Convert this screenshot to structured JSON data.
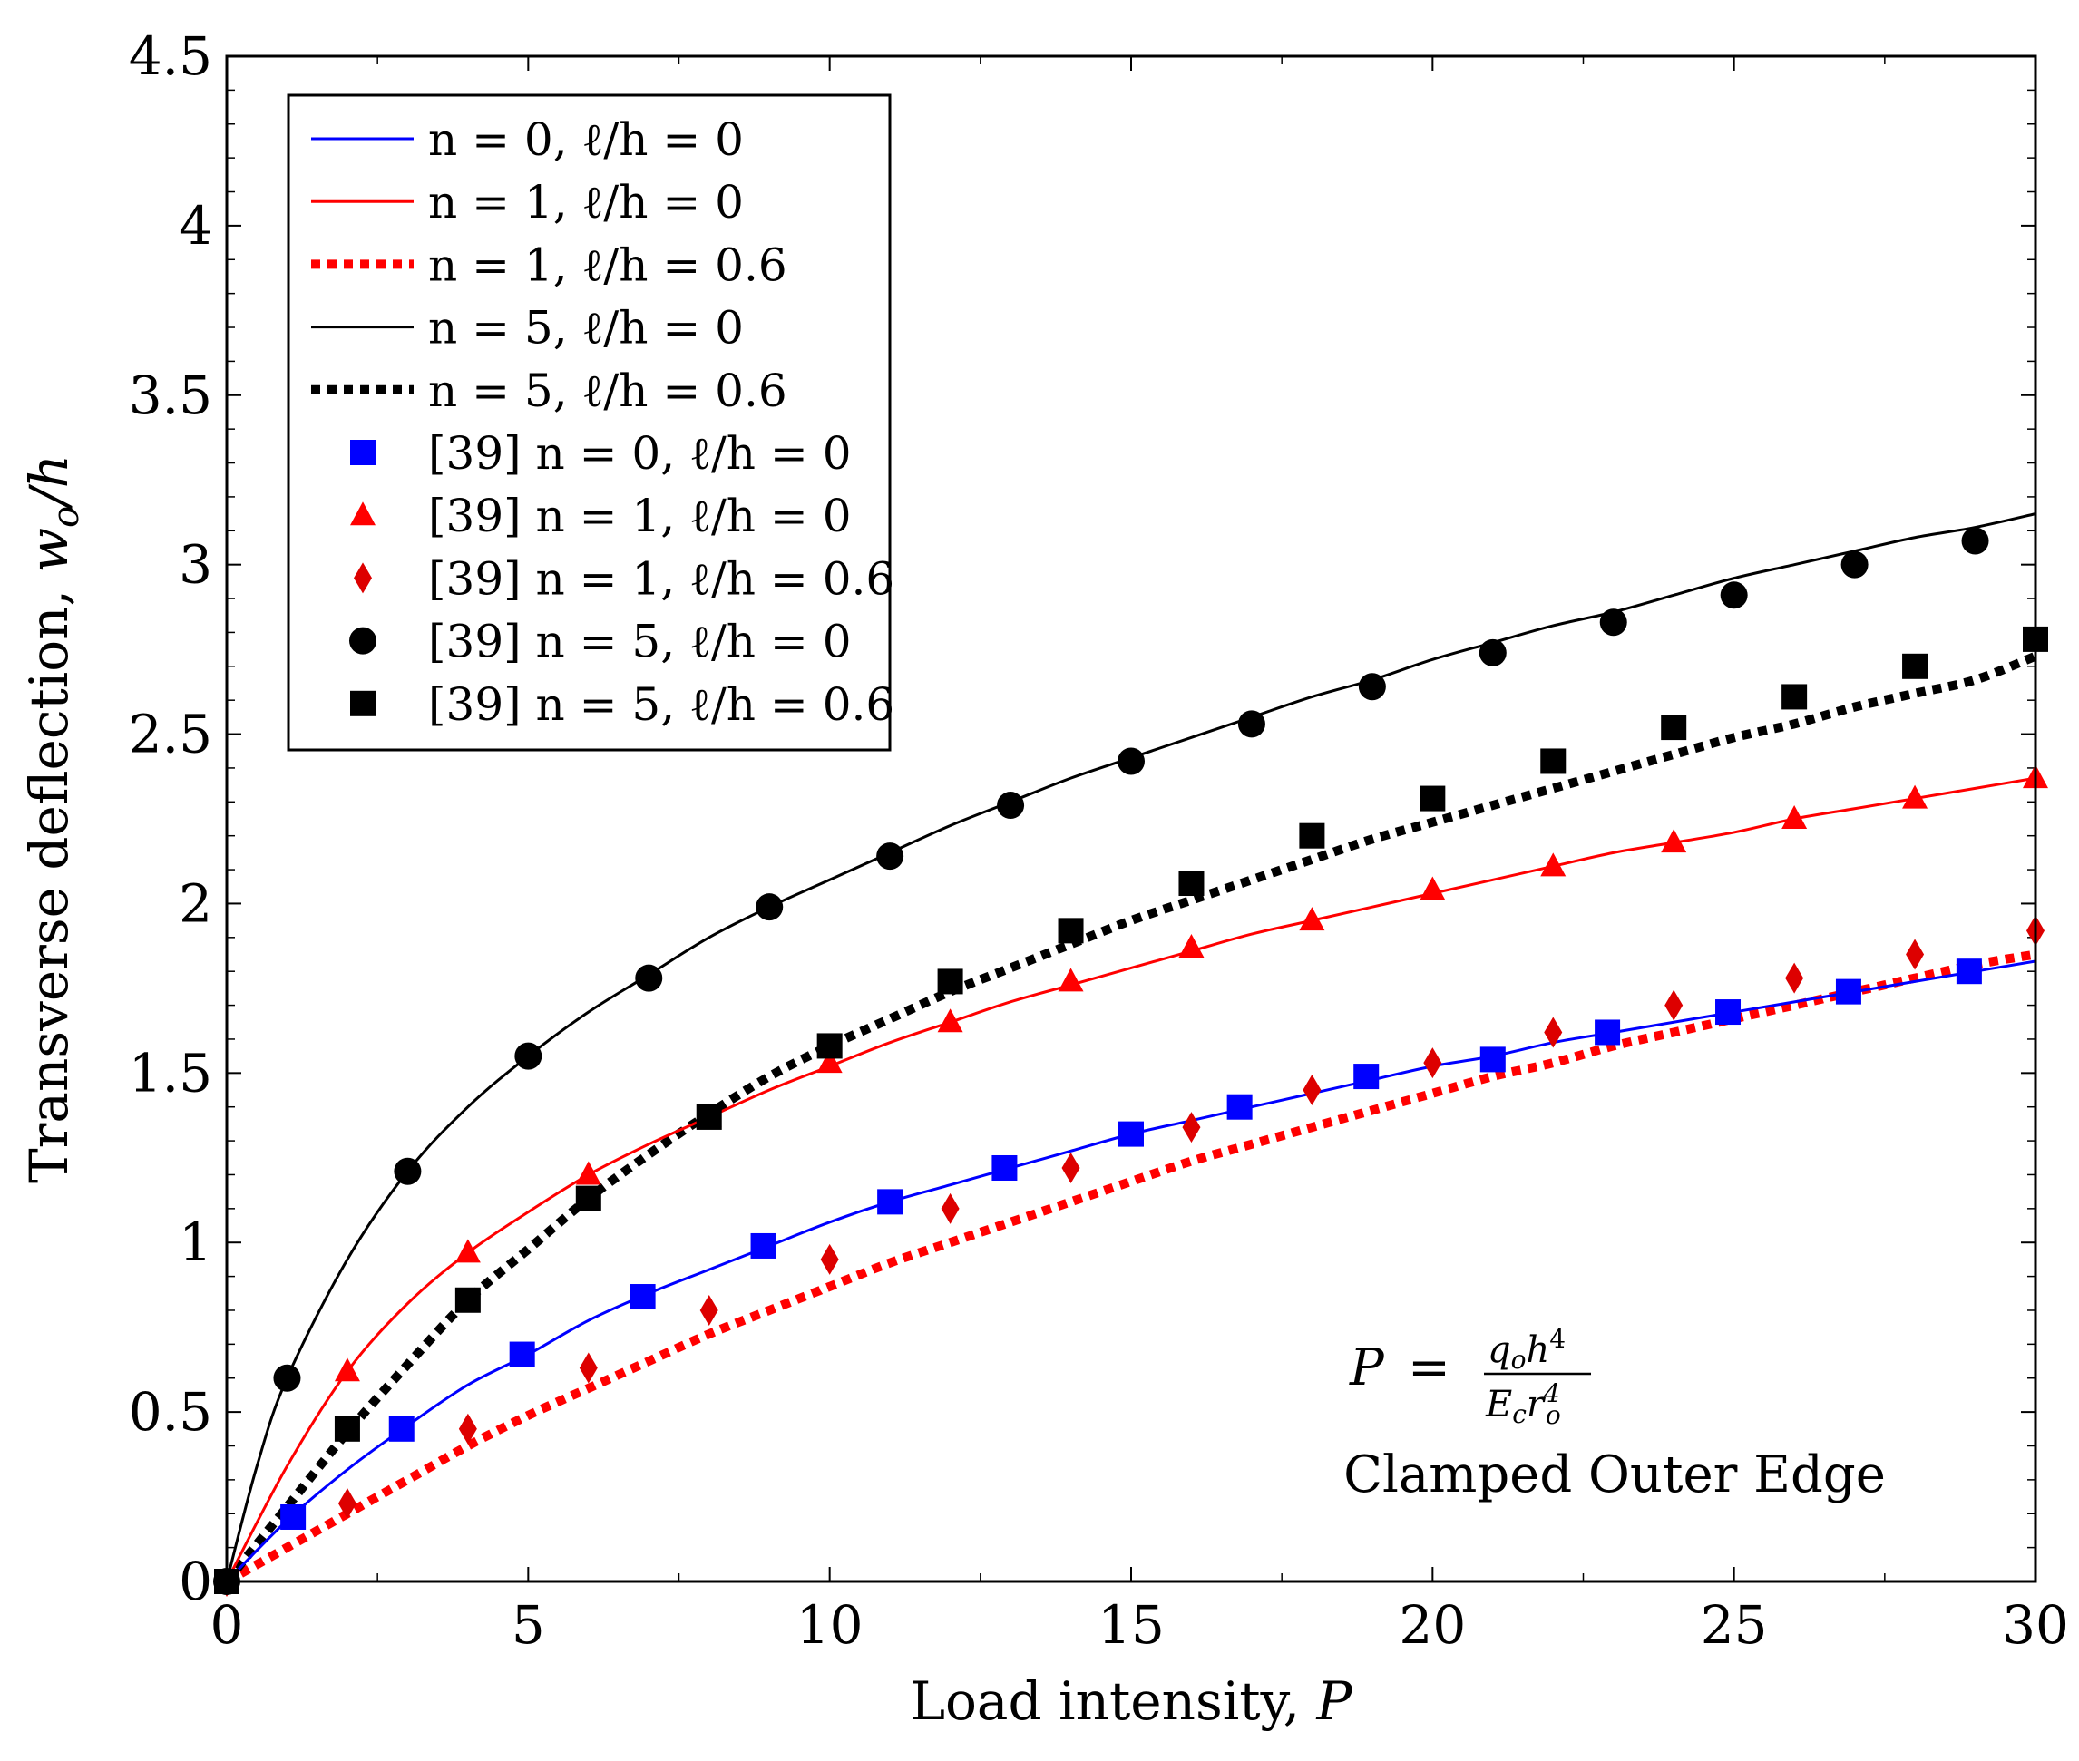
{
  "chart_data": {
    "type": "line",
    "title": "",
    "xlabel": "Load intensity, P",
    "ylabel": "Transverse deflection, w_o/h",
    "xlim": [
      0,
      30
    ],
    "ylim": [
      0,
      4.5
    ],
    "x_ticks": [
      "0",
      "5",
      "10",
      "15",
      "20",
      "25",
      "30"
    ],
    "y_ticks": [
      "0",
      "0.5",
      "1",
      "1.5",
      "2",
      "2.5",
      "3",
      "3.5",
      "4",
      "4.5"
    ],
    "grid": false,
    "legend_position": "top-left",
    "series": [
      {
        "name": "n = 0, ℓ/h = 0",
        "kind": "line",
        "style": "solid",
        "color": "#0000ff",
        "x": [
          0,
          1,
          2,
          3,
          4,
          5,
          6,
          7,
          8,
          9,
          10,
          11,
          12,
          13,
          14,
          15,
          16,
          17,
          18,
          19,
          20,
          21,
          22,
          23,
          24,
          25,
          26,
          27,
          28,
          29,
          30
        ],
        "y": [
          0,
          0.18,
          0.33,
          0.46,
          0.58,
          0.67,
          0.77,
          0.85,
          0.92,
          0.99,
          1.06,
          1.12,
          1.17,
          1.22,
          1.27,
          1.32,
          1.36,
          1.4,
          1.44,
          1.48,
          1.52,
          1.55,
          1.59,
          1.62,
          1.65,
          1.68,
          1.71,
          1.74,
          1.77,
          1.8,
          1.83
        ]
      },
      {
        "name": "n = 1, ℓ/h = 0",
        "kind": "line",
        "style": "solid",
        "color": "#ff0000",
        "x": [
          0,
          1,
          2,
          3,
          4,
          5,
          6,
          7,
          8,
          9,
          10,
          11,
          12,
          13,
          14,
          15,
          16,
          17,
          18,
          19,
          20,
          21,
          22,
          23,
          24,
          25,
          26,
          27,
          28,
          29,
          30
        ],
        "y": [
          0,
          0.34,
          0.62,
          0.82,
          0.97,
          1.09,
          1.2,
          1.29,
          1.37,
          1.45,
          1.52,
          1.59,
          1.65,
          1.71,
          1.76,
          1.81,
          1.86,
          1.91,
          1.95,
          1.99,
          2.03,
          2.07,
          2.11,
          2.15,
          2.18,
          2.21,
          2.25,
          2.28,
          2.31,
          2.34,
          2.37
        ]
      },
      {
        "name": "n = 1, ℓ/h = 0.6",
        "kind": "line",
        "style": "dotted",
        "color": "#ff0000",
        "x": [
          0,
          1,
          2,
          3,
          4,
          5,
          6,
          7,
          8,
          9,
          10,
          11,
          12,
          13,
          14,
          15,
          16,
          17,
          18,
          19,
          20,
          21,
          22,
          23,
          24,
          25,
          26,
          27,
          28,
          29,
          30
        ],
        "y": [
          0,
          0.1,
          0.2,
          0.3,
          0.4,
          0.49,
          0.57,
          0.65,
          0.73,
          0.8,
          0.87,
          0.94,
          1.0,
          1.06,
          1.12,
          1.18,
          1.24,
          1.29,
          1.34,
          1.39,
          1.44,
          1.49,
          1.53,
          1.58,
          1.62,
          1.66,
          1.7,
          1.74,
          1.78,
          1.82,
          1.85
        ]
      },
      {
        "name": "n = 5, ℓ/h = 0",
        "kind": "line",
        "style": "solid",
        "color": "#000000",
        "x": [
          0,
          0.5,
          1,
          2,
          3,
          4,
          5,
          6,
          7,
          8,
          9,
          10,
          11,
          12,
          13,
          14,
          15,
          16,
          17,
          18,
          19,
          20,
          21,
          22,
          23,
          24,
          25,
          26,
          27,
          28,
          29,
          30
        ],
        "y": [
          0,
          0.34,
          0.6,
          0.95,
          1.21,
          1.4,
          1.55,
          1.68,
          1.79,
          1.9,
          1.99,
          2.07,
          2.15,
          2.23,
          2.3,
          2.37,
          2.43,
          2.49,
          2.55,
          2.61,
          2.66,
          2.72,
          2.77,
          2.82,
          2.86,
          2.91,
          2.96,
          3.0,
          3.04,
          3.08,
          3.11,
          3.15
        ]
      },
      {
        "name": "n = 5, ℓ/h = 0.6",
        "kind": "line",
        "style": "dotted",
        "color": "#000000",
        "x": [
          0,
          1,
          2,
          3,
          4,
          5,
          6,
          7,
          8,
          9,
          10,
          11,
          12,
          13,
          14,
          15,
          16,
          17,
          18,
          19,
          20,
          21,
          22,
          23,
          24,
          25,
          26,
          27,
          28,
          29,
          30
        ],
        "y": [
          0,
          0.22,
          0.44,
          0.64,
          0.83,
          0.98,
          1.13,
          1.26,
          1.38,
          1.49,
          1.58,
          1.66,
          1.74,
          1.81,
          1.88,
          1.95,
          2.01,
          2.07,
          2.13,
          2.19,
          2.24,
          2.29,
          2.34,
          2.39,
          2.44,
          2.49,
          2.53,
          2.58,
          2.62,
          2.66,
          2.73
        ]
      },
      {
        "name": "[39] n = 0, ℓ/h = 0",
        "kind": "markers",
        "marker": "square",
        "color": "#0000ff",
        "x": [
          0,
          1.1,
          2.9,
          4.9,
          6.9,
          8.9,
          11,
          12.9,
          15,
          16.8,
          18.9,
          21,
          22.9,
          24.9,
          26.9,
          28.9
        ],
        "y": [
          0,
          0.19,
          0.45,
          0.67,
          0.84,
          0.99,
          1.12,
          1.22,
          1.32,
          1.4,
          1.49,
          1.54,
          1.62,
          1.68,
          1.74,
          1.8
        ]
      },
      {
        "name": "[39] n = 1, ℓ/h = 0",
        "kind": "markers",
        "marker": "triangle",
        "color": "#ff0000",
        "x": [
          0,
          2,
          4,
          6,
          8,
          10,
          12,
          14,
          16,
          18,
          20,
          22,
          24,
          26,
          28,
          30
        ],
        "y": [
          0,
          0.62,
          0.97,
          1.2,
          1.37,
          1.53,
          1.65,
          1.77,
          1.87,
          1.95,
          2.04,
          2.11,
          2.18,
          2.25,
          2.31,
          2.37
        ]
      },
      {
        "name": "[39] n = 1, ℓ/h = 0.6",
        "kind": "markers",
        "marker": "diamond",
        "color": "#dd0000",
        "x": [
          0,
          2,
          4,
          6,
          8,
          10,
          12,
          14,
          16,
          18,
          20,
          22,
          24,
          26,
          28,
          30
        ],
        "y": [
          0,
          0.23,
          0.45,
          0.63,
          0.8,
          0.95,
          1.1,
          1.22,
          1.34,
          1.45,
          1.53,
          1.62,
          1.7,
          1.78,
          1.85,
          1.92
        ]
      },
      {
        "name": "[39] n = 5, ℓ/h = 0",
        "kind": "markers",
        "marker": "circle",
        "color": "#000000",
        "x": [
          0,
          1,
          3,
          5,
          7,
          9,
          11,
          13,
          15,
          17,
          19,
          21,
          23,
          25,
          27,
          29
        ],
        "y": [
          0,
          0.6,
          1.21,
          1.55,
          1.78,
          1.99,
          2.14,
          2.29,
          2.42,
          2.53,
          2.64,
          2.74,
          2.83,
          2.91,
          3.0,
          3.07
        ]
      },
      {
        "name": "[39] n = 5, ℓ/h = 0.6",
        "kind": "markers",
        "marker": "square",
        "color": "#000000",
        "x": [
          0,
          2,
          4,
          6,
          8,
          10,
          12,
          14,
          16,
          18,
          20,
          22,
          24,
          26,
          28,
          30
        ],
        "y": [
          0,
          0.45,
          0.83,
          1.13,
          1.37,
          1.58,
          1.77,
          1.92,
          2.06,
          2.2,
          2.31,
          2.42,
          2.52,
          2.61,
          2.7,
          2.78
        ]
      }
    ],
    "annotations": {
      "formula": "P = q_o h^4 / (E_c r_o^4)",
      "formula_parts": {
        "lhs": "P",
        "eq": "=",
        "num_q": "q",
        "num_q_sub": "o",
        "num_h": "h",
        "num_h_sup": "4",
        "den_E": "E",
        "den_E_sub": "c",
        "den_r": "r",
        "den_r_sub": "o",
        "den_r_sup": "4"
      },
      "boundary_condition": "Clamped Outer Edge"
    },
    "axis_label_parts": {
      "x_text": "Load intensity, ",
      "x_var": "P",
      "y_text": "Transverse deflection, ",
      "y_var": "w",
      "y_sub": "o",
      "y_rest": "/h"
    }
  }
}
